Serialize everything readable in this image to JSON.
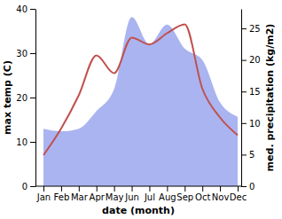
{
  "chart_data": {
    "type": "line",
    "x_label": "date (month)",
    "y_label": "max temp (C)",
    "y2_label": "med. precipitation (kg/m2)",
    "categories": [
      "Jan",
      "Feb",
      "Mar",
      "Apr",
      "May",
      "Jun",
      "Jul",
      "Aug",
      "Sep",
      "Oct",
      "Nov",
      "Dec"
    ],
    "series": [
      {
        "type": "area",
        "axis": "y2",
        "color": "#aab4f0",
        "values": [
          9.1,
          8.7,
          9.1,
          11.9,
          15.4,
          26.8,
          22.5,
          25.6,
          21.8,
          20.0,
          13.3,
          11.0
        ]
      },
      {
        "type": "line",
        "color": "#c0504d",
        "values": [
          7,
          13,
          20.5,
          29.5,
          25.5,
          33.5,
          32,
          34.5,
          36.5,
          22,
          15.5,
          11.5
        ]
      }
    ],
    "ylim": [
      0,
      40
    ],
    "yticks": [
      0,
      10,
      20,
      30,
      40
    ],
    "y2lim": [
      0,
      28.1
    ],
    "y2ticks": [
      0,
      5,
      10,
      15,
      20,
      25
    ]
  }
}
